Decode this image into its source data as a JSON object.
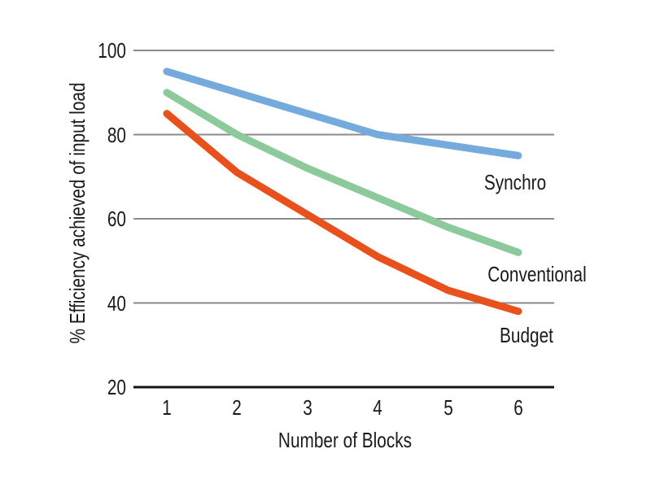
{
  "chart_data": {
    "type": "line",
    "title": "",
    "xlabel": "Number of Blocks",
    "ylabel": "% Efficiency achieved of input load",
    "categories": [
      "1",
      "2",
      "3",
      "4",
      "5",
      "6"
    ],
    "ylim": [
      20,
      100
    ],
    "yticks": [
      20,
      40,
      60,
      80,
      100
    ],
    "grid": "horizontal-only",
    "legend_position": "inline-right-of-line-ends",
    "series": [
      {
        "name": "Synchro",
        "color": "#74AADC",
        "values": [
          95,
          90,
          85,
          80,
          77.5,
          75
        ]
      },
      {
        "name": "Conventional",
        "color": "#8CC99B",
        "values": [
          90,
          80,
          72,
          65,
          58,
          52
        ]
      },
      {
        "name": "Budget",
        "color": "#E8501C",
        "values": [
          85,
          71,
          61,
          51,
          43,
          38
        ]
      }
    ]
  },
  "colors": {
    "background": "#FFFFFF",
    "gridline": "#8B8B8B",
    "axis_line": "#141414",
    "text": "#1A1A1A"
  }
}
